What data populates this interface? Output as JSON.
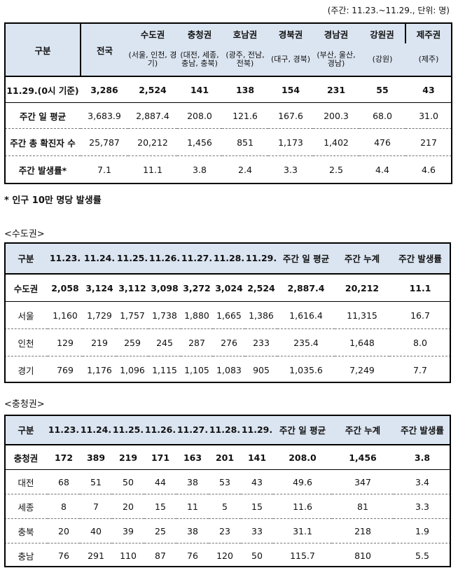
{
  "caption": "(주간: 11.23.~11.29., 단위: 명)",
  "summary": {
    "header": {
      "label": "구분",
      "national": "전국",
      "regions": [
        {
          "name": "수도권",
          "sub": "(서울, 인천, 경기)"
        },
        {
          "name": "충청권",
          "sub": "(대전, 세종, 충남, 충북)"
        },
        {
          "name": "호남권",
          "sub": "(광주, 전남, 전북)"
        },
        {
          "name": "경북권",
          "sub": "(대구, 경북)"
        },
        {
          "name": "경남권",
          "sub": "(부산, 울산, 경남)"
        },
        {
          "name": "강원권",
          "sub": "(강원)"
        },
        {
          "name": "제주권",
          "sub": "(제주)"
        }
      ]
    },
    "rows": [
      {
        "label": "11.29.(0시 기준)",
        "values": [
          "3,286",
          "2,524",
          "141",
          "138",
          "154",
          "231",
          "55",
          "43"
        ]
      },
      {
        "label": "주간 일 평균",
        "values": [
          "3,683.9",
          "2,887.4",
          "208.0",
          "121.6",
          "167.6",
          "200.3",
          "68.0",
          "31.0"
        ]
      },
      {
        "label": "주간 총 확진자 수",
        "values": [
          "25,787",
          "20,212",
          "1,456",
          "851",
          "1,173",
          "1,402",
          "476",
          "217"
        ]
      },
      {
        "label": "주간 발생률*",
        "values": [
          "7.1",
          "11.1",
          "3.8",
          "2.4",
          "3.3",
          "2.5",
          "4.4",
          "4.6"
        ]
      }
    ]
  },
  "footnote": "* 인구 10만 명당 발생률",
  "capital": {
    "title": "<수도권>",
    "header": [
      "구분",
      "11.23.",
      "11.24.",
      "11.25.",
      "11.26.",
      "11.27.",
      "11.28.",
      "11.29.",
      "주간 일 평균",
      "주간 누계",
      "주간 발생률"
    ],
    "rows": [
      [
        "수도권",
        "2,058",
        "3,124",
        "3,112",
        "3,098",
        "3,272",
        "3,024",
        "2,524",
        "2,887.4",
        "20,212",
        "11.1"
      ],
      [
        "서울",
        "1,160",
        "1,729",
        "1,757",
        "1,738",
        "1,880",
        "1,665",
        "1,386",
        "1,616.4",
        "11,315",
        "16.7"
      ],
      [
        "인천",
        "129",
        "219",
        "259",
        "245",
        "287",
        "276",
        "233",
        "235.4",
        "1,648",
        "8.0"
      ],
      [
        "경기",
        "769",
        "1,176",
        "1,096",
        "1,115",
        "1,105",
        "1,083",
        "905",
        "1,035.6",
        "7,249",
        "7.7"
      ]
    ]
  },
  "chungcheong": {
    "title": "<충청권>",
    "header": [
      "구분",
      "11.23.",
      "11.24.",
      "11.25.",
      "11.26.",
      "11.27.",
      "11.28.",
      "11.29.",
      "주간 일 평균",
      "주간 누계",
      "주간 발생률"
    ],
    "rows": [
      [
        "충청권",
        "172",
        "389",
        "219",
        "171",
        "163",
        "201",
        "141",
        "208.0",
        "1,456",
        "3.8"
      ],
      [
        "대전",
        "68",
        "51",
        "50",
        "44",
        "38",
        "53",
        "43",
        "49.6",
        "347",
        "3.4"
      ],
      [
        "세종",
        "8",
        "7",
        "20",
        "15",
        "11",
        "5",
        "15",
        "11.6",
        "81",
        "3.3"
      ],
      [
        "충북",
        "20",
        "40",
        "39",
        "25",
        "38",
        "23",
        "33",
        "31.1",
        "218",
        "1.9"
      ],
      [
        "충남",
        "76",
        "291",
        "110",
        "87",
        "76",
        "120",
        "50",
        "115.7",
        "810",
        "5.5"
      ]
    ]
  }
}
